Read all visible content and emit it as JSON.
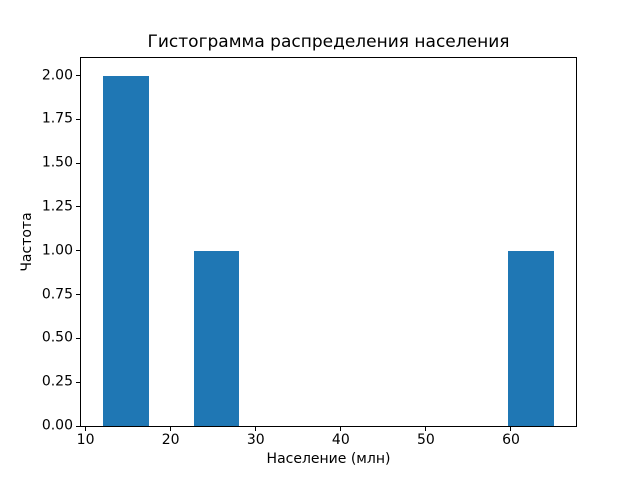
{
  "figure": {
    "background_color": "#ffffff",
    "spine_color": "#000000",
    "text_color": "#000000"
  },
  "chart_data": {
    "type": "bar",
    "subtype": "histogram",
    "title": "Гистограмма распределения населения",
    "xlabel": "Население (млн)",
    "ylabel": "Частота",
    "bar_color": "#1f77b4",
    "grid": false,
    "legend_visible": false,
    "xlim": [
      9.46,
      67.64
    ],
    "ylim": [
      0,
      2.1
    ],
    "xticks": [
      {
        "v": 10,
        "label": "10"
      },
      {
        "v": 20,
        "label": "20"
      },
      {
        "v": 30,
        "label": "30"
      },
      {
        "v": 40,
        "label": "40"
      },
      {
        "v": 50,
        "label": "50"
      },
      {
        "v": 60,
        "label": "60"
      }
    ],
    "yticks": [
      {
        "v": 0.0,
        "label": "0.00"
      },
      {
        "v": 0.25,
        "label": "0.25"
      },
      {
        "v": 0.5,
        "label": "0.50"
      },
      {
        "v": 0.75,
        "label": "0.75"
      },
      {
        "v": 1.0,
        "label": "1.00"
      },
      {
        "v": 1.25,
        "label": "1.25"
      },
      {
        "v": 1.5,
        "label": "1.50"
      },
      {
        "v": 1.75,
        "label": "1.75"
      },
      {
        "v": 2.0,
        "label": "2.00"
      }
    ],
    "bars": [
      {
        "x_left": 12.1,
        "x_right": 17.4,
        "frequency": 2
      },
      {
        "x_left": 22.7,
        "x_right": 28.0,
        "frequency": 1
      },
      {
        "x_left": 59.7,
        "x_right": 65.0,
        "frequency": 1
      }
    ]
  }
}
